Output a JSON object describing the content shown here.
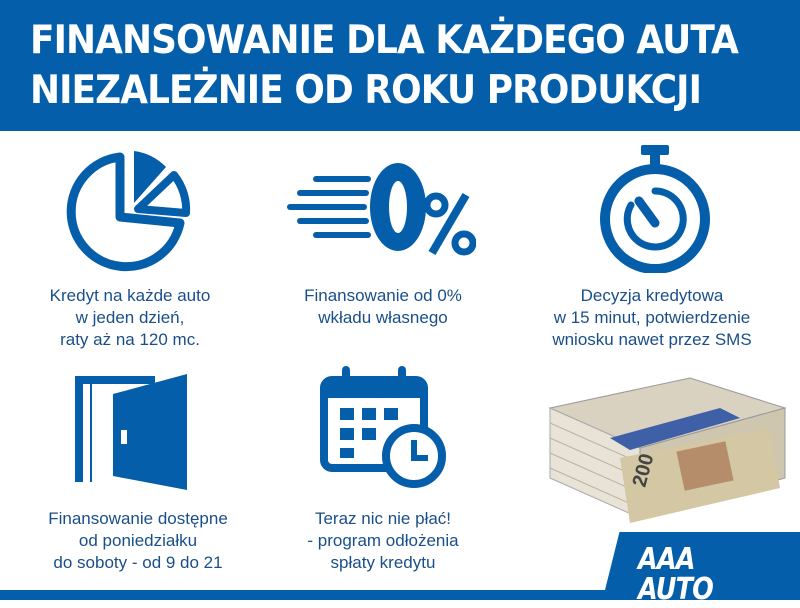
{
  "header": {
    "title_line1": "FINANSOWANIE DLA KAŻDEGO AUTA",
    "title_line2": "NIEZALEŻNIE OD ROKU PRODUKCJI"
  },
  "features": [
    {
      "icon": "pie-chart-icon",
      "lines": [
        "Kredyt na każde auto",
        "w jeden dzień,",
        "raty aż na 120 mc."
      ]
    },
    {
      "icon": "zero-percent-icon",
      "icon_text": "0%",
      "lines": [
        "Finansowanie od 0%",
        "wkładu własnego"
      ]
    },
    {
      "icon": "stopwatch-icon",
      "lines": [
        "Decyzja kredytowa",
        "w 15 minut, potwierdzenie",
        "wniosku nawet przez SMS"
      ]
    },
    {
      "icon": "open-door-icon",
      "lines": [
        "Finansowanie dostępne",
        "od poniedziałku",
        "do soboty - od 9 do 21"
      ]
    },
    {
      "icon": "calendar-clock-icon",
      "lines": [
        "Teraz nic nie płać!",
        "- program odłożenia",
        "spłaty kredytu"
      ]
    },
    {
      "icon": "money-stack-icon",
      "banknote_value": "200"
    }
  ],
  "logo": {
    "text": "AAA AUTO"
  },
  "colors": {
    "brand_blue": "#045ea9",
    "text_blue": "#1a4f8a"
  }
}
